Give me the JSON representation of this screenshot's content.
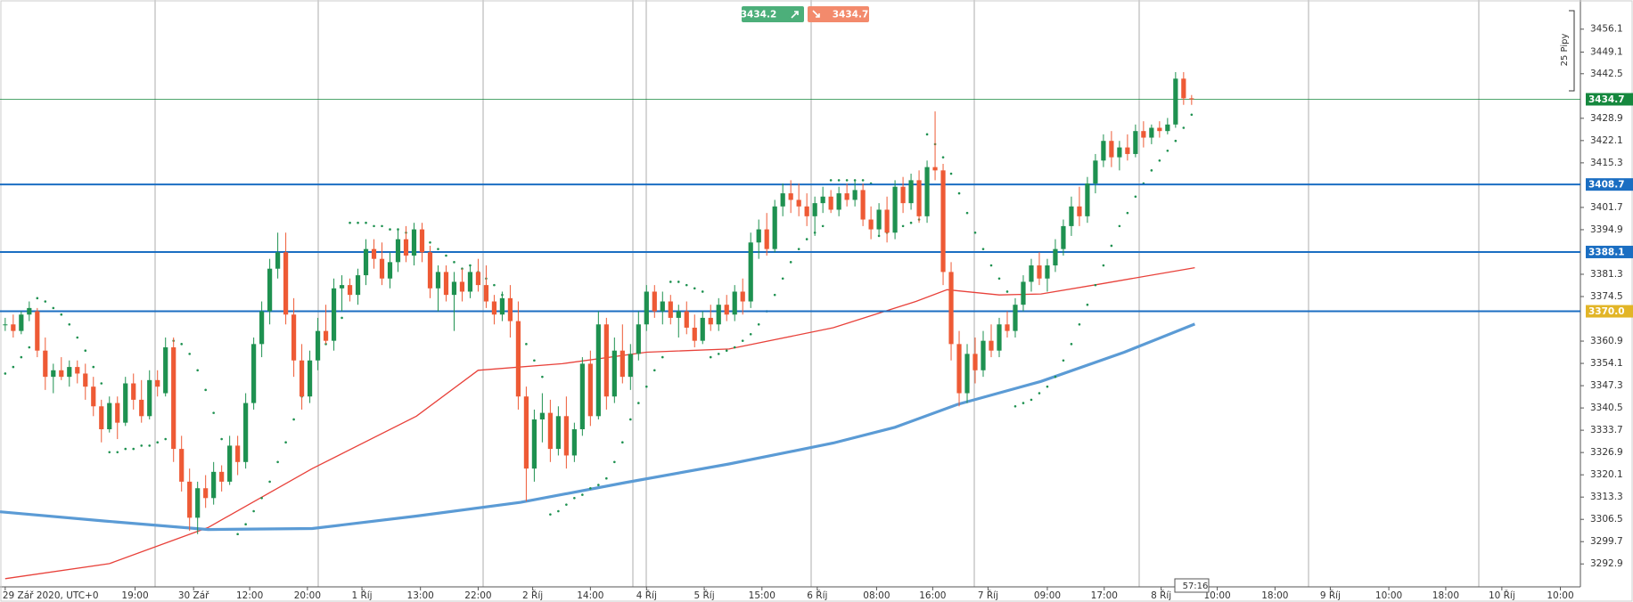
{
  "chart_data": {
    "type": "candlestick",
    "up_color": "#1e9150",
    "down_color": "#ee5a35",
    "xlim": [
      -0.65,
      196.5
    ],
    "xticks": [
      {
        "value": 0,
        "label": "29 Zář 2020, UTC+0"
      },
      {
        "value": 16.2,
        "label": "19:00"
      },
      {
        "value": 23.5,
        "label": "30 Zář"
      },
      {
        "value": 30.5,
        "label": "12:00"
      },
      {
        "value": 37.7,
        "label": "20:00"
      },
      {
        "value": 44.5,
        "label": "1 Říj"
      },
      {
        "value": 51.8,
        "label": "13:00"
      },
      {
        "value": 59,
        "label": "22:00"
      },
      {
        "value": 65.8,
        "label": "2 Říj"
      },
      {
        "value": 73,
        "label": "14:00"
      },
      {
        "value": 80,
        "label": "4 Říj"
      },
      {
        "value": 87.2,
        "label": "5 Říj"
      },
      {
        "value": 94.4,
        "label": "15:00"
      },
      {
        "value": 101.3,
        "label": "6 Říj"
      },
      {
        "value": 108.7,
        "label": "08:00"
      },
      {
        "value": 115.7,
        "label": "16:00"
      },
      {
        "value": 122.6,
        "label": "7 Říj"
      },
      {
        "value": 130,
        "label": "09:00"
      },
      {
        "value": 137.1,
        "label": "17:00"
      },
      {
        "value": 144.2,
        "label": "8 Říj"
      },
      {
        "value": 151.2,
        "label": "10:00"
      },
      {
        "value": 158.4,
        "label": "18:00"
      },
      {
        "value": 165.3,
        "label": "9 Říj"
      },
      {
        "value": 172.6,
        "label": "10:00"
      },
      {
        "value": 179.7,
        "label": "18:00"
      },
      {
        "value": 186.7,
        "label": "10 Říj"
      },
      {
        "value": 194,
        "label": "10:00"
      }
    ],
    "ylim": [
      3285.9,
      3465.0
    ],
    "yticks": [
      3456.1,
      3449.1,
      3442.5,
      3428.9,
      3422.1,
      3415.3,
      3401.7,
      3394.9,
      3381.3,
      3374.5,
      3360.9,
      3354.1,
      3347.3,
      3340.5,
      3333.7,
      3326.9,
      3320.1,
      3313.3,
      3306.5,
      3299.7,
      3292.9
    ],
    "ohlc": [
      [
        3366,
        3368,
        3364,
        3366
      ],
      [
        3366,
        3369,
        3362,
        3364
      ],
      [
        3364,
        3370,
        3363,
        3369
      ],
      [
        3369,
        3373,
        3367,
        3371
      ],
      [
        3370,
        3371,
        3356,
        3358
      ],
      [
        3358,
        3362,
        3346,
        3350
      ],
      [
        3350,
        3354,
        3345,
        3352
      ],
      [
        3352,
        3356,
        3349,
        3350
      ],
      [
        3350,
        3355,
        3347,
        3353
      ],
      [
        3353,
        3355,
        3348,
        3351
      ],
      [
        3351,
        3354,
        3343,
        3347
      ],
      [
        3347,
        3350,
        3338,
        3341
      ],
      [
        3341,
        3343,
        3330,
        3334
      ],
      [
        3334,
        3344,
        3333,
        3342
      ],
      [
        3342,
        3344,
        3331,
        3336
      ],
      [
        3336,
        3350,
        3335,
        3348
      ],
      [
        3348,
        3351,
        3340,
        3343
      ],
      [
        3343,
        3349,
        3336,
        3338
      ],
      [
        3338,
        3352,
        3337,
        3349
      ],
      [
        3349,
        3352,
        3344,
        3347
      ],
      [
        3345,
        3362,
        3344,
        3359
      ],
      [
        3359,
        3362,
        3324,
        3328
      ],
      [
        3328,
        3332,
        3315,
        3318
      ],
      [
        3318,
        3322,
        3303,
        3307
      ],
      [
        3307,
        3318,
        3302,
        3316
      ],
      [
        3316,
        3320,
        3310,
        3313
      ],
      [
        3313,
        3324,
        3311,
        3321
      ],
      [
        3321,
        3323,
        3315,
        3318
      ],
      [
        3318,
        3332,
        3317,
        3329
      ],
      [
        3329,
        3332,
        3320,
        3324
      ],
      [
        3324,
        3345,
        3322,
        3342
      ],
      [
        3342,
        3362,
        3340,
        3360
      ],
      [
        3360,
        3373,
        3356,
        3370
      ],
      [
        3370,
        3386,
        3366,
        3383
      ],
      [
        3383,
        3394,
        3380,
        3388
      ],
      [
        3388,
        3394,
        3366,
        3369
      ],
      [
        3369,
        3374,
        3350,
        3355
      ],
      [
        3355,
        3360,
        3340,
        3344
      ],
      [
        3344,
        3358,
        3342,
        3355
      ],
      [
        3355,
        3368,
        3352,
        3364
      ],
      [
        3364,
        3372,
        3360,
        3361
      ],
      [
        3361,
        3380,
        3358,
        3377
      ],
      [
        3377,
        3381,
        3370,
        3378
      ],
      [
        3378,
        3380,
        3373,
        3375
      ],
      [
        3375,
        3383,
        3372,
        3381
      ],
      [
        3381,
        3392,
        3378,
        3389
      ],
      [
        3389,
        3392,
        3383,
        3386
      ],
      [
        3386,
        3391,
        3378,
        3380
      ],
      [
        3380,
        3388,
        3377,
        3385
      ],
      [
        3385,
        3395,
        3382,
        3392
      ],
      [
        3392,
        3396,
        3385,
        3387
      ],
      [
        3387,
        3397,
        3384,
        3395
      ],
      [
        3395,
        3397,
        3385,
        3388
      ],
      [
        3388,
        3390,
        3374,
        3377
      ],
      [
        3377,
        3384,
        3370,
        3382
      ],
      [
        3382,
        3384,
        3373,
        3375
      ],
      [
        3375,
        3382,
        3364,
        3379
      ],
      [
        3379,
        3383,
        3373,
        3376
      ],
      [
        3376,
        3384,
        3374,
        3382
      ],
      [
        3382,
        3386,
        3376,
        3378
      ],
      [
        3378,
        3384,
        3371,
        3373
      ],
      [
        3373,
        3375,
        3366,
        3369
      ],
      [
        3369,
        3376,
        3367,
        3374
      ],
      [
        3374,
        3378,
        3362,
        3367
      ],
      [
        3367,
        3373,
        3340,
        3344
      ],
      [
        3344,
        3347,
        3312,
        3322
      ],
      [
        3322,
        3340,
        3318,
        3337
      ],
      [
        3337,
        3345,
        3330,
        3339
      ],
      [
        3339,
        3343,
        3324,
        3328
      ],
      [
        3328,
        3341,
        3326,
        3338
      ],
      [
        3338,
        3344,
        3322,
        3326
      ],
      [
        3326,
        3336,
        3324,
        3334
      ],
      [
        3334,
        3356,
        3332,
        3354
      ],
      [
        3354,
        3358,
        3335,
        3338
      ],
      [
        3338,
        3370,
        3337,
        3366
      ],
      [
        3366,
        3368,
        3340,
        3344
      ],
      [
        3344,
        3362,
        3342,
        3358
      ],
      [
        3358,
        3366,
        3348,
        3350
      ],
      [
        3350,
        3360,
        3346,
        3357
      ],
      [
        3357,
        3370,
        3355,
        3366
      ],
      [
        3366,
        3378,
        3364,
        3376
      ],
      [
        3376,
        3378,
        3368,
        3370
      ],
      [
        3370,
        3376,
        3366,
        3373
      ],
      [
        3373,
        3375,
        3366,
        3368
      ],
      [
        3368,
        3372,
        3362,
        3370
      ],
      [
        3370,
        3373,
        3363,
        3365
      ],
      [
        3365,
        3369,
        3359,
        3361
      ],
      [
        3361,
        3370,
        3360,
        3368
      ],
      [
        3368,
        3372,
        3364,
        3366
      ],
      [
        3366,
        3374,
        3364,
        3372
      ],
      [
        3372,
        3375,
        3367,
        3369
      ],
      [
        3369,
        3378,
        3367,
        3376
      ],
      [
        3376,
        3380,
        3369,
        3373
      ],
      [
        3373,
        3394,
        3371,
        3391
      ],
      [
        3391,
        3398,
        3386,
        3395
      ],
      [
        3395,
        3400,
        3387,
        3389
      ],
      [
        3389,
        3404,
        3388,
        3402
      ],
      [
        3402,
        3409,
        3399,
        3406
      ],
      [
        3406,
        3410,
        3400,
        3404
      ],
      [
        3404,
        3409,
        3399,
        3402
      ],
      [
        3402,
        3406,
        3396,
        3399
      ],
      [
        3399,
        3405,
        3393,
        3403
      ],
      [
        3403,
        3408,
        3400,
        3405
      ],
      [
        3405,
        3407,
        3400,
        3401
      ],
      [
        3401,
        3408,
        3399,
        3406
      ],
      [
        3406,
        3409,
        3402,
        3404
      ],
      [
        3404,
        3410,
        3402,
        3407
      ],
      [
        3407,
        3409,
        3396,
        3398
      ],
      [
        3398,
        3402,
        3392,
        3395
      ],
      [
        3395,
        3403,
        3393,
        3401
      ],
      [
        3401,
        3405,
        3391,
        3394
      ],
      [
        3394,
        3410,
        3392,
        3408
      ],
      [
        3408,
        3411,
        3400,
        3403
      ],
      [
        3403,
        3412,
        3401,
        3410
      ],
      [
        3410,
        3413,
        3397,
        3399
      ],
      [
        3399,
        3416,
        3397,
        3414
      ],
      [
        3414,
        3431,
        3410,
        3413
      ],
      [
        3413,
        3415,
        3378,
        3382
      ],
      [
        3382,
        3385,
        3355,
        3360
      ],
      [
        3360,
        3364,
        3341,
        3345
      ],
      [
        3345,
        3360,
        3342,
        3357
      ],
      [
        3357,
        3362,
        3348,
        3352
      ],
      [
        3352,
        3364,
        3350,
        3361
      ],
      [
        3361,
        3366,
        3356,
        3358
      ],
      [
        3358,
        3368,
        3356,
        3366
      ],
      [
        3366,
        3370,
        3362,
        3364
      ],
      [
        3364,
        3374,
        3362,
        3372
      ],
      [
        3372,
        3381,
        3370,
        3379
      ],
      [
        3379,
        3386,
        3376,
        3384
      ],
      [
        3384,
        3388,
        3378,
        3380
      ],
      [
        3380,
        3386,
        3376,
        3384
      ],
      [
        3384,
        3392,
        3382,
        3389
      ],
      [
        3389,
        3398,
        3387,
        3396
      ],
      [
        3396,
        3405,
        3393,
        3402
      ],
      [
        3402,
        3408,
        3396,
        3399
      ],
      [
        3399,
        3411,
        3397,
        3409
      ],
      [
        3409,
        3418,
        3406,
        3416
      ],
      [
        3416,
        3424,
        3414,
        3422
      ],
      [
        3422,
        3425,
        3414,
        3417
      ],
      [
        3417,
        3422,
        3413,
        3420
      ],
      [
        3420,
        3424,
        3416,
        3418
      ],
      [
        3418,
        3427,
        3417,
        3425
      ],
      [
        3425,
        3428,
        3420,
        3423
      ],
      [
        3423,
        3427,
        3421,
        3426
      ],
      [
        3426,
        3428,
        3423,
        3425
      ],
      [
        3425,
        3429,
        3424,
        3427
      ],
      [
        3427,
        3443,
        3426,
        3441
      ],
      [
        3441,
        3443,
        3433,
        3435
      ],
      [
        3435,
        3436,
        3433,
        3434.7
      ]
    ],
    "series": [
      {
        "color": "#e8413a",
        "width": 1.3,
        "x": [
          0,
          13,
          25.3,
          38.3,
          51.3,
          59,
          69.5,
          80,
          90.3,
          103.3,
          113.6,
          117.5,
          124,
          129.2,
          137,
          148.4
        ],
        "values": [
          3288.4,
          3293,
          3304,
          3322,
          3338,
          3352,
          3354,
          3357.5,
          3358.5,
          3365,
          3373,
          3376.6,
          3375,
          3375.3,
          3378.5,
          3383.3
        ]
      },
      {
        "color": "#5b9bd5",
        "width": 3.2,
        "x": [
          -0.65,
          12.3,
          25.3,
          38.3,
          51.3,
          64.3,
          77.3,
          90.3,
          103.3,
          111,
          118.8,
          129.2,
          139.6,
          148.4
        ],
        "values": [
          3308.8,
          3306,
          3303.4,
          3303.7,
          3307.5,
          3311.7,
          3317.7,
          3323.4,
          3329.8,
          3334.6,
          3341.6,
          3348.6,
          3357.5,
          3366.1
        ]
      }
    ],
    "sar": {
      "color": "#1e9150",
      "values": [
        3351,
        3353,
        3356,
        3359,
        3374,
        3373,
        3371,
        3369,
        3366,
        3362,
        3358,
        3353,
        3348,
        3327,
        3327,
        3328,
        3328,
        3329,
        3329,
        3330,
        3331,
        3361,
        3360,
        3357,
        3352,
        3346,
        3339,
        3331,
        3322,
        3302,
        3305,
        3309,
        3313,
        3318,
        3324,
        3330,
        3337,
        3344,
        3350,
        3356,
        3360,
        3364,
        3368,
        3397,
        3397,
        3397,
        3396,
        3396,
        3395,
        3395,
        3394,
        3393,
        3392,
        3391,
        3389,
        3387,
        3385,
        3383,
        3384,
        3382,
        3380,
        3378,
        3375,
        3371,
        3366,
        3360,
        3355,
        3350,
        3308,
        3309,
        3311,
        3313,
        3314,
        3316,
        3317,
        3319,
        3324,
        3330,
        3337,
        3342,
        3347,
        3352,
        3356,
        3379,
        3379,
        3378,
        3377,
        3376,
        3356,
        3357,
        3358,
        3359,
        3361,
        3363,
        3366,
        3370,
        3375,
        3380,
        3385,
        3389,
        3392,
        3394,
        3396,
        3410,
        3410,
        3410,
        3410,
        3410,
        3409,
        3393,
        3394,
        3395,
        3396,
        3397,
        3398,
        3424,
        3421,
        3417,
        3412,
        3406,
        3400,
        3394,
        3389,
        3384,
        3380,
        3376,
        3341,
        3342,
        3343,
        3345,
        3347,
        3350,
        3355,
        3360,
        3366,
        3372,
        3378,
        3384,
        3390,
        3396,
        3400,
        3405,
        3409,
        3413,
        3416,
        3419,
        3422,
        3426,
        3430
      ]
    },
    "levels": {
      "color": "#1b6ec2",
      "values": [
        3408.7,
        3388.1,
        3370.0
      ],
      "value_labels": [
        "3408.7",
        "3388.1",
        "3370.0"
      ],
      "tag_colors": [
        "#1b6ec2",
        "#1b6ec2",
        "#e2b527"
      ]
    },
    "price": {
      "value": 3434.7,
      "color": "#15883e"
    },
    "bid": 3434.2,
    "ask": 3434.7,
    "timer": "57:16",
    "scale_label": "25 Pipy"
  }
}
